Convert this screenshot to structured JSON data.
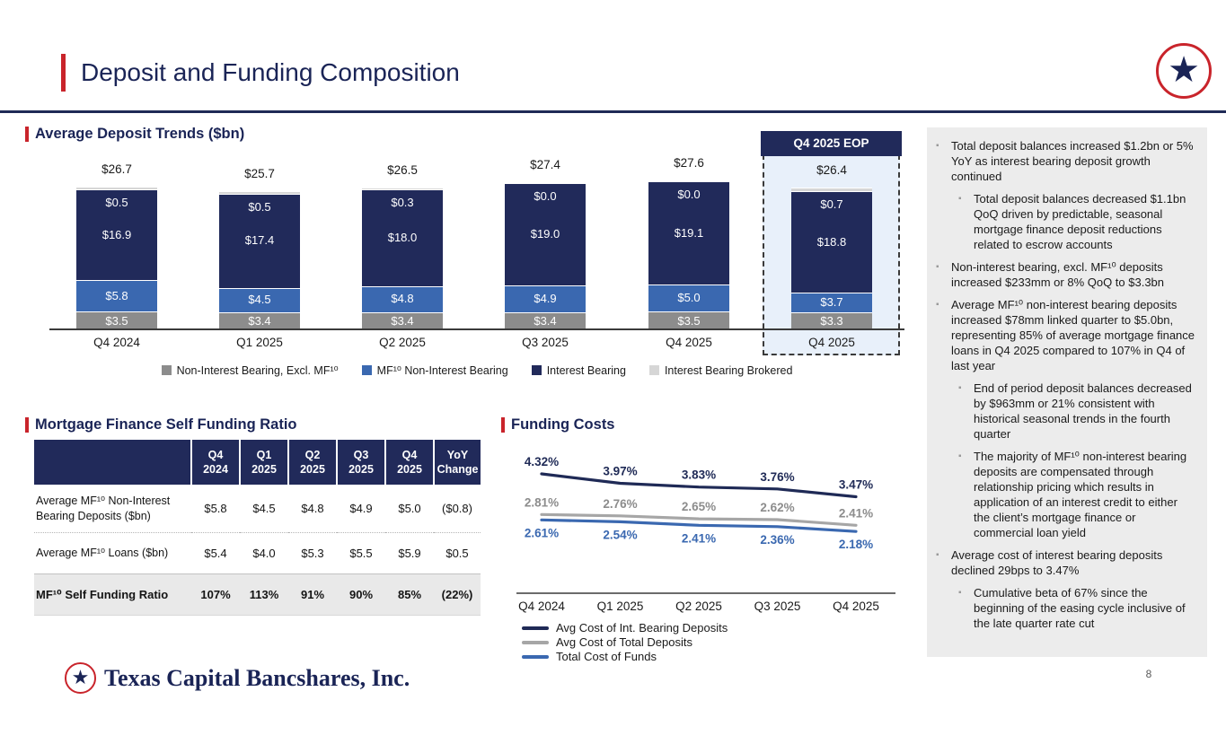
{
  "header": {
    "title": "Deposit and Funding Composition"
  },
  "footer": {
    "company": "Texas Capital Bancshares, Inc.",
    "page_number": "8"
  },
  "colors": {
    "accent_red": "#C9242B",
    "navy": "#212A5A",
    "mid_blue": "#3A68B0",
    "gray": "#8C8C8C",
    "light_gray": "#D6D6D6",
    "sidebar_bg": "#ECECEC",
    "eop_fill": "#E8F0FA"
  },
  "chart_data": [
    {
      "type": "bar",
      "stacked": true,
      "title": "Average Deposit Trends ($bn)",
      "eop_header": "Q4 2025 EOP",
      "categories": [
        "Q4 2024",
        "Q1 2025",
        "Q2 2025",
        "Q3 2025",
        "Q4 2025",
        "Q4 2025"
      ],
      "totals": [
        "$26.7",
        "$25.7",
        "$26.5",
        "$27.4",
        "$27.6",
        "$26.4"
      ],
      "series": [
        {
          "name": "Non-Interest Bearing, Excl. MF¹⁰",
          "color": "#8C8C8C",
          "values": [
            3.5,
            3.4,
            3.4,
            3.4,
            3.5,
            3.3
          ],
          "value_labels": [
            "$3.5",
            "$3.4",
            "$3.4",
            "$3.4",
            "$3.5",
            "$3.3"
          ]
        },
        {
          "name": "MF¹⁰ Non-Interest Bearing",
          "color": "#3A68B0",
          "values": [
            5.8,
            4.5,
            4.8,
            4.9,
            5.0,
            3.7
          ],
          "value_labels": [
            "$5.8",
            "$4.5",
            "$4.8",
            "$4.9",
            "$5.0",
            "$3.7"
          ]
        },
        {
          "name": "Interest Bearing",
          "color": "#212A5A",
          "values": [
            16.9,
            17.4,
            18.0,
            19.0,
            19.1,
            18.8
          ],
          "value_labels": [
            "$16.9",
            "$17.4",
            "$18.0",
            "$19.0",
            "$19.1",
            "$18.8"
          ]
        },
        {
          "name": "Interest Bearing Brokered",
          "color": "#D6D6D6",
          "values": [
            0.5,
            0.5,
            0.3,
            0.0,
            0.0,
            0.7
          ],
          "value_labels": [
            "$0.5",
            "$0.5",
            "$0.3",
            "$0.0",
            "$0.0",
            "$0.7"
          ]
        }
      ]
    },
    {
      "type": "line",
      "title": "Funding Costs",
      "categories": [
        "Q4 2024",
        "Q1 2025",
        "Q2 2025",
        "Q3 2025",
        "Q4 2025"
      ],
      "series": [
        {
          "name": "Avg Cost of Int. Bearing Deposits",
          "color": "#1F2A56",
          "label_side": "above",
          "values": [
            4.32,
            3.97,
            3.83,
            3.76,
            3.47
          ],
          "labels": [
            "4.32%",
            "3.97%",
            "3.83%",
            "3.76%",
            "3.47%"
          ]
        },
        {
          "name": "Avg Cost of Total Deposits",
          "color": "#A6A6A6",
          "label_color": "#8C8C8C",
          "label_side": "above",
          "values": [
            2.81,
            2.76,
            2.65,
            2.62,
            2.41
          ],
          "labels": [
            "2.81%",
            "2.76%",
            "2.65%",
            "2.62%",
            "2.41%"
          ]
        },
        {
          "name": "Total Cost of Funds",
          "color": "#3A68B0",
          "label_side": "below",
          "values": [
            2.61,
            2.54,
            2.41,
            2.36,
            2.18
          ],
          "labels": [
            "2.61%",
            "2.54%",
            "2.41%",
            "2.36%",
            "2.18%"
          ]
        }
      ]
    }
  ],
  "mf_table": {
    "heading": "Mortgage Finance Self Funding Ratio",
    "col_headers": [
      "",
      "Q4\n2024",
      "Q1\n2025",
      "Q2\n2025",
      "Q3\n2025",
      "Q4\n2025",
      "YoY\nChange"
    ],
    "rows": [
      {
        "label": "Average MF¹⁰ Non-Interest Bearing Deposits ($bn)",
        "total": false,
        "values": [
          "$5.8",
          "$4.5",
          "$4.8",
          "$4.9",
          "$5.0",
          "($0.8)"
        ]
      },
      {
        "label": "Average MF¹⁰ Loans ($bn)",
        "total": false,
        "values": [
          "$5.4",
          "$4.0",
          "$5.3",
          "$5.5",
          "$5.9",
          "$0.5"
        ]
      },
      {
        "label": "MF¹⁰ Self Funding Ratio",
        "total": true,
        "values": [
          "107%",
          "113%",
          "91%",
          "90%",
          "85%",
          "(22%)"
        ]
      }
    ]
  },
  "sidebar": {
    "bullets": [
      {
        "level": 1,
        "text": "Total deposit balances increased $1.2bn or 5% YoY as interest bearing deposit growth continued"
      },
      {
        "level": 2,
        "text": "Total deposit balances decreased $1.1bn QoQ driven by predictable, seasonal mortgage finance deposit reductions related to escrow accounts"
      },
      {
        "level": 1,
        "text": "Non-interest bearing, excl. MF¹⁰ deposits increased $233mm or 8% QoQ to $3.3bn"
      },
      {
        "level": 1,
        "text": "Average MF¹⁰ non-interest bearing deposits increased $78mm linked quarter to $5.0bn, representing 85% of average mortgage finance loans in Q4 2025 compared to 107% in Q4 of last year"
      },
      {
        "level": 2,
        "text": "End of period deposit balances decreased by $963mm or 21% consistent with historical seasonal trends in the fourth quarter"
      },
      {
        "level": 2,
        "text": "The majority of MF¹⁰ non-interest bearing deposits are compensated through relationship pricing which results in application of an interest credit to either the client’s mortgage finance or commercial loan yield"
      },
      {
        "level": 1,
        "text": "Average cost of interest bearing deposits declined 29bps to 3.47%"
      },
      {
        "level": 2,
        "text": "Cumulative beta of 67% since the beginning of the easing cycle inclusive of the late quarter rate cut"
      }
    ]
  }
}
